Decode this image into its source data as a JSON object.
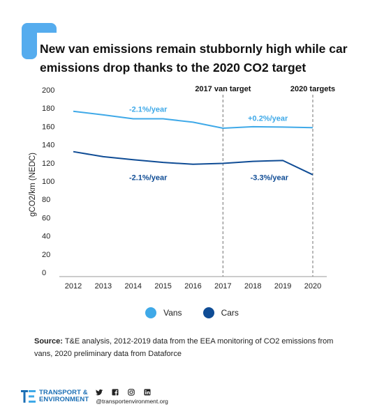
{
  "title": "New van emissions remain stubbornly high while car emissions drop thanks to the 2020 CO2 target",
  "colors": {
    "vans": "#3fa9e8",
    "cars": "#0f4c95",
    "bracket": "#55acee",
    "brand": "#1b6fb5"
  },
  "chart_data": {
    "type": "line",
    "x": [
      2012,
      2013,
      2014,
      2015,
      2016,
      2017,
      2018,
      2019,
      2020
    ],
    "series": [
      {
        "name": "Vans",
        "values": [
          176.5,
          172.6,
          168.3,
          168.3,
          164.6,
          158.0,
          159.6,
          159.3,
          158.6
        ]
      },
      {
        "name": "Cars",
        "values": [
          132.3,
          126.8,
          123.5,
          120.5,
          118.5,
          119.5,
          121.7,
          122.6,
          107.0
        ]
      }
    ],
    "ylabel": "gCO2/km (NEDC)",
    "xlabel": "",
    "ylim": [
      0,
      200
    ],
    "yticks": [
      0,
      20,
      40,
      60,
      80,
      100,
      120,
      140,
      160,
      180,
      200
    ],
    "grid": false,
    "legend_position": "bottom",
    "reference_lines": [
      {
        "x": 2017,
        "label": "2017 van target"
      },
      {
        "x": 2020,
        "label": "2020 targets"
      }
    ],
    "annotations": [
      {
        "text": "-2.1%/year",
        "x": 2014.5,
        "y": 176,
        "series": "Vans"
      },
      {
        "text": "+0.2%/year",
        "x": 2018.5,
        "y": 166,
        "series": "Vans"
      },
      {
        "text": "-2.1%/year",
        "x": 2014.5,
        "y": 101,
        "series": "Cars"
      },
      {
        "text": "-3.3%/year",
        "x": 2018.55,
        "y": 101,
        "series": "Cars"
      }
    ]
  },
  "legend": {
    "items": [
      "Vans",
      "Cars"
    ]
  },
  "source": {
    "label": "Source:",
    "text": " T&E analysis, 2012-2019 data from the EEA monitoring of CO2 emissions from vans, 2020 preliminary data from Dataforce"
  },
  "footer": {
    "logo_line1": "TRANSPORT &",
    "logo_line2": "ENVIRONMENT",
    "handle": "@transportenvironment.org",
    "social_icons": [
      "twitter-icon",
      "facebook-icon",
      "instagram-icon",
      "linkedin-icon"
    ]
  }
}
